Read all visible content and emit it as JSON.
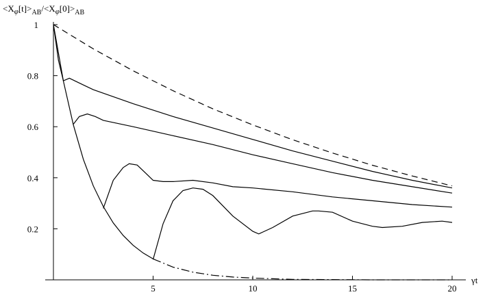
{
  "chart_data": {
    "type": "line",
    "ylabel_parts": [
      "<X",
      "φ",
      "[t]>",
      "AB",
      "/<X",
      "φ",
      "[0]>",
      "AB"
    ],
    "xlabel": "γt",
    "xlim": [
      0,
      20
    ],
    "ylim": [
      0,
      1
    ],
    "xticks": [
      5,
      10,
      15,
      20
    ],
    "yticks": [
      0.2,
      0.4,
      0.6,
      0.8,
      1
    ],
    "series": [
      {
        "color": "#000000",
        "style": "dashed",
        "x": [
          0,
          2,
          4,
          6,
          8,
          10,
          12,
          14,
          16,
          18,
          20
        ],
        "values": [
          1,
          0.905,
          0.819,
          0.741,
          0.67,
          0.607,
          0.549,
          0.497,
          0.449,
          0.407,
          0.368
        ]
      },
      {
        "color": "#000000",
        "style": "solid",
        "x": [
          0,
          0.25,
          0.5,
          0.8,
          1.2,
          2,
          4,
          6,
          8,
          10,
          12,
          14,
          16,
          18,
          20
        ],
        "values": [
          1,
          0.86,
          0.78,
          0.79,
          0.775,
          0.745,
          0.69,
          0.64,
          0.595,
          0.55,
          0.505,
          0.465,
          0.425,
          0.39,
          0.36
        ]
      },
      {
        "color": "#000000",
        "style": "solid",
        "x": [
          1,
          1.3,
          1.7,
          2.1,
          2.5,
          4,
          6,
          8,
          10,
          12,
          14,
          16,
          18,
          20
        ],
        "values": [
          0.61,
          0.64,
          0.65,
          0.64,
          0.625,
          0.6,
          0.565,
          0.53,
          0.49,
          0.455,
          0.42,
          0.39,
          0.365,
          0.34
        ]
      },
      {
        "color": "#000000",
        "style": "solid",
        "x": [
          2.5,
          3,
          3.5,
          3.8,
          4.2,
          4.6,
          5,
          5.5,
          6,
          7,
          8,
          9,
          10,
          12,
          14,
          16,
          18,
          20
        ],
        "values": [
          0.28,
          0.39,
          0.44,
          0.455,
          0.45,
          0.42,
          0.39,
          0.385,
          0.385,
          0.39,
          0.38,
          0.365,
          0.36,
          0.345,
          0.325,
          0.31,
          0.295,
          0.285
        ]
      },
      {
        "color": "#000000",
        "style": "solid",
        "x": [
          5,
          5.5,
          6,
          6.5,
          7,
          7.5,
          8,
          9,
          10,
          10.3,
          11,
          12,
          13,
          13.3,
          14,
          15,
          16,
          16.5,
          17.5,
          18.5,
          19.5,
          20
        ],
        "values": [
          0.08,
          0.22,
          0.31,
          0.35,
          0.36,
          0.355,
          0.33,
          0.25,
          0.19,
          0.18,
          0.205,
          0.25,
          0.27,
          0.27,
          0.265,
          0.23,
          0.21,
          0.205,
          0.21,
          0.225,
          0.23,
          0.225
        ]
      },
      {
        "color": "#000000",
        "style": "solid",
        "x": [
          0,
          0.5,
          1,
          1.5,
          2,
          2.5,
          3,
          3.5,
          4,
          4.5,
          5
        ],
        "values": [
          1,
          0.779,
          0.607,
          0.472,
          0.368,
          0.287,
          0.223,
          0.174,
          0.135,
          0.105,
          0.082
        ]
      },
      {
        "color": "#000000",
        "style": "dashdot",
        "x": [
          5,
          6,
          7,
          8,
          9,
          10,
          12,
          14,
          16,
          18,
          20
        ],
        "values": [
          0.082,
          0.05,
          0.03,
          0.018,
          0.011,
          0.007,
          0.002,
          0.001,
          0,
          0,
          0
        ]
      }
    ]
  }
}
